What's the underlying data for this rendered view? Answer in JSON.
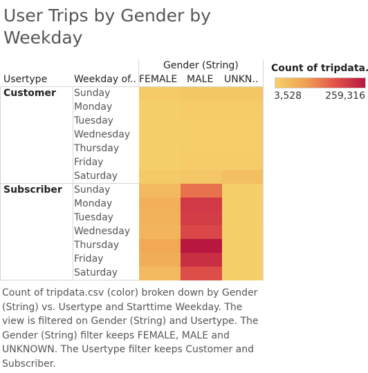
{
  "title": "User Trips by Gender by Weekday",
  "headers": {
    "column_group": "Gender (String)",
    "row_dim1": "Usertype",
    "row_dim2": "Weekday of..",
    "columns": [
      "FEMALE",
      "MALE",
      "UNKN.."
    ]
  },
  "legend": {
    "title": "Count of tripdata...",
    "min_label": "3,528",
    "max_label": "259,316",
    "colors": [
      "#f5d06a",
      "#f0a152",
      "#e1524a",
      "#b8173f"
    ]
  },
  "caption": "Count of tripdata.csv (color) broken down by Gender (String) vs. Usertype and Starttime Weekday. The view is filtered on Gender (String) and Usertype. The Gender (String) filter keeps FEMALE, MALE and UNKNOWN. The Usertype filter keeps Customer and Subscriber.",
  "chart_data": {
    "type": "heatmap",
    "x": [
      "FEMALE",
      "MALE",
      "UNKNOWN"
    ],
    "row_groups": [
      {
        "name": "Customer",
        "rows": [
          "Sunday",
          "Monday",
          "Tuesday",
          "Wednesday",
          "Thursday",
          "Friday",
          "Saturday"
        ],
        "values": [
          [
            12000,
            20000,
            20000
          ],
          [
            6000,
            10000,
            10000
          ],
          [
            5000,
            8000,
            8000
          ],
          [
            4000,
            7000,
            7000
          ],
          [
            5000,
            8500,
            8500
          ],
          [
            6000,
            10000,
            10000
          ],
          [
            15000,
            22000,
            35000
          ]
        ]
      },
      {
        "name": "Subscriber",
        "rows": [
          "Sunday",
          "Monday",
          "Tuesday",
          "Wednesday",
          "Thursday",
          "Friday",
          "Saturday"
        ],
        "values": [
          [
            45000,
            140000,
            4000
          ],
          [
            62000,
            210000,
            4500
          ],
          [
            58000,
            205000,
            4500
          ],
          [
            52000,
            190000,
            4200
          ],
          [
            75000,
            259316,
            4000
          ],
          [
            65000,
            225000,
            3900
          ],
          [
            46000,
            180000,
            3528
          ]
        ]
      }
    ],
    "color_range": [
      3528,
      259316
    ],
    "legend_title": "Count of tripdata..."
  }
}
